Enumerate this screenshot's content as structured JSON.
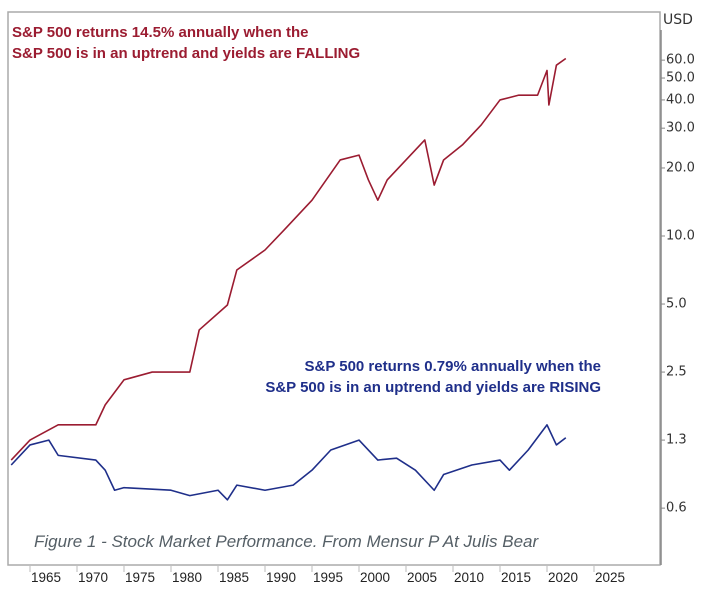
{
  "chart_data": {
    "type": "line",
    "title": "",
    "caption": "Figure 1 - Stock Market Performance. From Mensur P At Julis Bear",
    "ylabel": "USD",
    "yscale": "log",
    "ylim": [
      0.4,
      75
    ],
    "xlim": [
      1963,
      2027
    ],
    "grid": false,
    "y_ticks": [
      "60.0",
      "50.0",
      "40.0",
      "30.0",
      "20.0",
      "10.0",
      "5.0",
      "2.5",
      "1.3",
      "0.6"
    ],
    "y_tick_values": [
      60,
      50,
      40,
      30,
      20,
      10,
      5,
      2.5,
      1.25,
      0.625
    ],
    "x_ticks": [
      "1965",
      "1970",
      "1975",
      "1980",
      "1985",
      "1990",
      "1995",
      "2000",
      "2005",
      "2010",
      "2015",
      "2020",
      "2025"
    ],
    "annotations": [
      {
        "lines": [
          "S&P 500 returns 14.5% annually when the",
          "S&P 500 is in an uptrend and yields are FALLING"
        ],
        "color": "#9b1c31"
      },
      {
        "lines": [
          "S&P 500 returns 0.79% annually when the",
          "S&P 500 is in an uptrend and yields are RISING"
        ],
        "color": "#1f2f8a"
      }
    ],
    "series": [
      {
        "color": "#9b1c31",
        "x": [
          1963,
          1965,
          1968,
          1972,
          1973,
          1975,
          1978,
          1982,
          1983,
          1986,
          1987,
          1990,
          1992,
          1995,
          1998,
          2000,
          2001,
          2002,
          2003,
          2005,
          2007,
          2008,
          2009,
          2011,
          2013,
          2015,
          2017,
          2019,
          2020,
          2020.2,
          2021,
          2022
        ],
        "y": [
          1.02,
          1.25,
          1.46,
          1.46,
          1.79,
          2.31,
          2.5,
          2.5,
          3.84,
          4.95,
          7.07,
          8.67,
          10.6,
          14.4,
          21.7,
          22.8,
          17.7,
          14.4,
          17.7,
          21.7,
          26.6,
          16.8,
          21.7,
          25.3,
          31,
          40,
          42,
          42,
          54,
          38,
          57,
          61
        ]
      },
      {
        "color": "#1f2f8a",
        "x": [
          1963,
          1965,
          1967,
          1968,
          1972,
          1973,
          1974,
          1975,
          1980,
          1982,
          1985,
          1986,
          1987,
          1990,
          1993,
          1995,
          1997,
          2000,
          2002,
          2004,
          2006,
          2008,
          2009,
          2012,
          2015,
          2016,
          2018,
          2020,
          2021,
          2022
        ],
        "y": [
          0.97,
          1.19,
          1.25,
          1.07,
          1.02,
          0.92,
          0.75,
          0.77,
          0.75,
          0.71,
          0.75,
          0.68,
          0.79,
          0.75,
          0.79,
          0.92,
          1.13,
          1.25,
          1.02,
          1.04,
          0.92,
          0.75,
          0.88,
          0.97,
          1.02,
          0.92,
          1.13,
          1.46,
          1.19,
          1.28
        ]
      }
    ]
  }
}
